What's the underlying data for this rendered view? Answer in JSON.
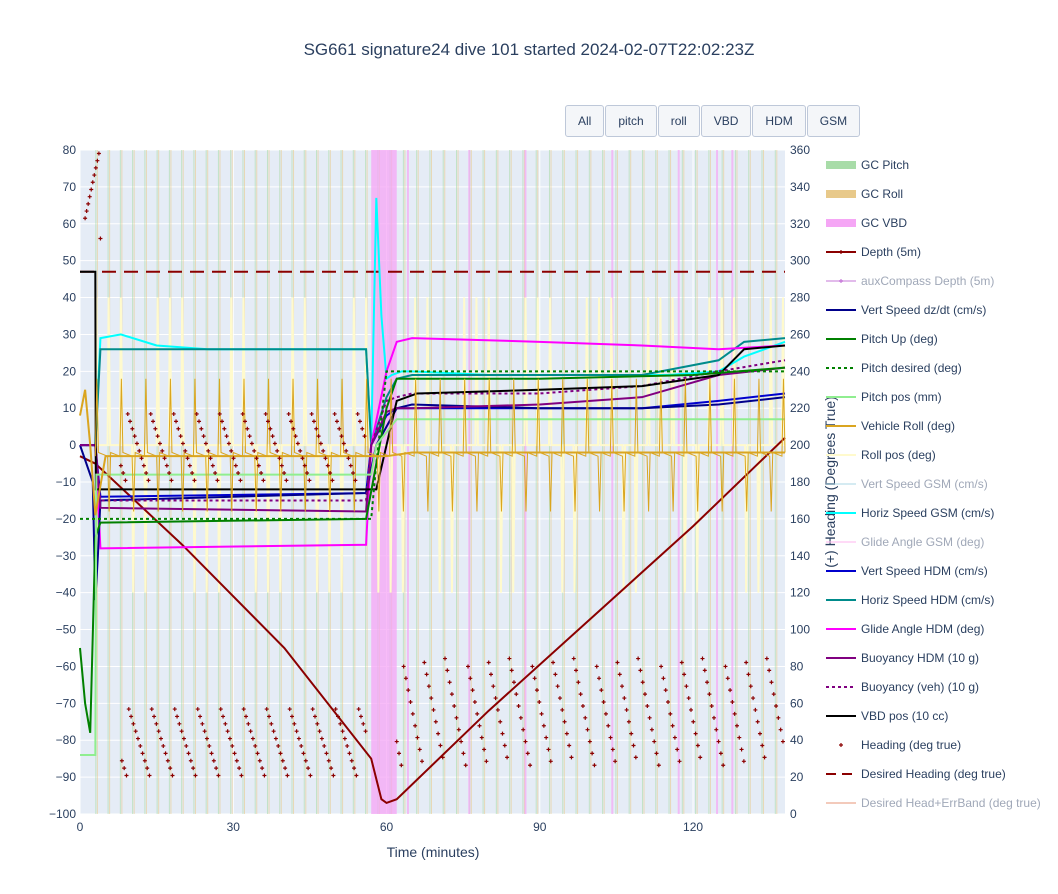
{
  "title": "SG661 signature24 dive 101 started 2024-02-07T22:02:23Z",
  "buttons": [
    "All",
    "pitch",
    "roll",
    "VBD",
    "HDM",
    "GSM"
  ],
  "chart_data": {
    "type": "line",
    "xlabel": "Time (minutes)",
    "ylabel_left": "",
    "ylabel_right": "(+) Heading (Degrees True)",
    "xlim": [
      0,
      138
    ],
    "ylim_left": [
      -100,
      80
    ],
    "ylim_right": [
      0,
      360
    ],
    "x_ticks": [
      0,
      30,
      60,
      90,
      120
    ],
    "y_ticks_left": [
      80,
      70,
      60,
      50,
      40,
      30,
      20,
      10,
      0,
      -10,
      -20,
      -30,
      -40,
      -50,
      -60,
      -70,
      -80,
      -90,
      -100
    ],
    "y_ticks_right": [
      360,
      340,
      320,
      300,
      280,
      260,
      240,
      220,
      200,
      180,
      160,
      140,
      120,
      100,
      80,
      60,
      40,
      20,
      0
    ],
    "gc_vbd_band": [
      57,
      62
    ],
    "legend": [
      {
        "name": "GC Pitch",
        "color": "#a8dca8",
        "style": "band",
        "visible": true
      },
      {
        "name": "GC Roll",
        "color": "#e8c98a",
        "style": "band",
        "visible": true
      },
      {
        "name": "GC VBD",
        "color": "#f5a6f5",
        "style": "band",
        "visible": true
      },
      {
        "name": "Depth (5m)",
        "color": "#8b0000",
        "style": "line-marker",
        "visible": true
      },
      {
        "name": "auxCompass Depth (5m)",
        "color": "#c77ad9",
        "style": "line-marker",
        "visible": false
      },
      {
        "name": "Vert Speed dz/dt (cm/s)",
        "color": "#00008b",
        "style": "line",
        "visible": true
      },
      {
        "name": "Pitch Up (deg)",
        "color": "#008000",
        "style": "line",
        "visible": true
      },
      {
        "name": "Pitch desired (deg)",
        "color": "#008000",
        "style": "dot",
        "visible": true
      },
      {
        "name": "Pitch pos (mm)",
        "color": "#90ee90",
        "style": "line",
        "visible": true
      },
      {
        "name": "Vehicle Roll (deg)",
        "color": "#daa520",
        "style": "line",
        "visible": true
      },
      {
        "name": "Roll pos (deg)",
        "color": "#fffacd",
        "style": "line",
        "visible": true
      },
      {
        "name": "Vert Speed GSM (cm/s)",
        "color": "#add8e6",
        "style": "line",
        "visible": false
      },
      {
        "name": "Horiz Speed GSM (cm/s)",
        "color": "#00ffff",
        "style": "line",
        "visible": true
      },
      {
        "name": "Glide Angle GSM (deg)",
        "color": "#ffb6f0",
        "style": "line",
        "visible": false
      },
      {
        "name": "Vert Speed HDM (cm/s)",
        "color": "#0000cd",
        "style": "line",
        "visible": true
      },
      {
        "name": "Horiz Speed HDM (cm/s)",
        "color": "#008b8b",
        "style": "line",
        "visible": true
      },
      {
        "name": "Glide Angle HDM (deg)",
        "color": "#ff00ff",
        "style": "line",
        "visible": true
      },
      {
        "name": "Buoyancy HDM (10 g)",
        "color": "#800080",
        "style": "line",
        "visible": true
      },
      {
        "name": "Buoyancy (veh) (10 g)",
        "color": "#800080",
        "style": "dot",
        "visible": true
      },
      {
        "name": "VBD pos (10 cc)",
        "color": "#000000",
        "style": "line",
        "visible": true
      },
      {
        "name": "Heading (deg true)",
        "color": "#8b0000",
        "style": "marker",
        "visible": true
      },
      {
        "name": "Desired Heading (deg true)",
        "color": "#8b0000",
        "style": "dash",
        "visible": true
      },
      {
        "name": "Desired Head+ErrBand (deg true)",
        "color": "#e9967a",
        "style": "line",
        "visible": false
      }
    ],
    "series": [
      {
        "name": "Depth (5m)",
        "axis": "left",
        "x": [
          0,
          3,
          20,
          40,
          57,
          59,
          60,
          62,
          80,
          100,
          120,
          138
        ],
        "y": [
          -3,
          -5,
          -27,
          -55,
          -85,
          -96,
          -97,
          -96,
          -72,
          -47,
          -22,
          2
        ]
      },
      {
        "name": "Desired Heading (deg true)",
        "axis": "right",
        "x": [
          0,
          138
        ],
        "y": [
          294,
          294
        ]
      },
      {
        "name": "Horiz Speed GSM (cm/s)",
        "axis": "left",
        "x": [
          0,
          3,
          4,
          8,
          15,
          25,
          35,
          45,
          56,
          57,
          58,
          59,
          60,
          61,
          63,
          65,
          80,
          100,
          115,
          125,
          130,
          138
        ],
        "y": [
          0,
          0,
          29,
          30,
          27,
          26,
          26,
          26,
          26,
          0,
          67,
          35,
          18,
          19,
          20,
          20,
          19,
          19,
          19,
          20,
          24,
          28
        ]
      },
      {
        "name": "Horiz Speed HDM (cm/s)",
        "axis": "left",
        "x": [
          0,
          3,
          4,
          56,
          57,
          60,
          62,
          65,
          90,
          110,
          125,
          130,
          138
        ],
        "y": [
          0,
          0,
          26,
          26,
          0,
          13,
          18,
          19,
          19,
          19,
          23,
          28,
          29
        ]
      },
      {
        "name": "Glide Angle HDM (deg)",
        "axis": "left",
        "x": [
          0,
          3,
          4,
          56,
          57,
          60,
          62,
          65,
          90,
          110,
          125,
          138
        ],
        "y": [
          0,
          0,
          -28,
          -27,
          0,
          20,
          28,
          29,
          28,
          27,
          26,
          27
        ]
      },
      {
        "name": "Vert Speed HDM (cm/s)",
        "axis": "left",
        "x": [
          0,
          3,
          4,
          56,
          57,
          60,
          62,
          65,
          90,
          110,
          125,
          138
        ],
        "y": [
          0,
          0,
          -14,
          -13,
          0,
          8,
          10,
          10,
          10,
          10,
          12,
          14
        ]
      },
      {
        "name": "Vert Speed dz/dt (cm/s)",
        "axis": "left",
        "x": [
          0,
          2.5,
          3,
          3.5,
          4,
          56,
          58,
          60,
          62,
          65,
          90,
          110,
          125,
          138
        ],
        "y": [
          0,
          -10,
          -42,
          -30,
          -15,
          -13,
          0,
          5,
          10,
          11,
          10,
          10,
          11,
          13
        ]
      },
      {
        "name": "Buoyancy HDM (10 g)",
        "axis": "left",
        "x": [
          0,
          3,
          4,
          56,
          57,
          60,
          62,
          65,
          90,
          110,
          125,
          138
        ],
        "y": [
          0,
          0,
          -17,
          -18,
          0,
          9,
          10,
          10,
          11,
          13,
          19,
          21
        ]
      },
      {
        "name": "Buoyancy (veh) (10 g)",
        "axis": "left",
        "x": [
          0,
          3,
          4,
          56,
          57,
          60,
          62,
          65,
          90,
          110,
          125,
          138
        ],
        "y": [
          0,
          0,
          -15,
          -15,
          0,
          12,
          13,
          14,
          14,
          16,
          20,
          23
        ]
      },
      {
        "name": "VBD pos (10 cc)",
        "axis": "left",
        "x": [
          0,
          3,
          3.1,
          56,
          58,
          62,
          66,
          90,
          110,
          125,
          130,
          138
        ],
        "y": [
          47,
          47,
          -12,
          -12,
          -12,
          12,
          14,
          15,
          16,
          19,
          26,
          27
        ]
      },
      {
        "name": "Pitch Up (deg)",
        "axis": "left",
        "x": [
          0,
          1,
          2,
          3,
          4,
          56,
          58,
          60,
          62,
          90,
          120,
          138
        ],
        "y": [
          -55,
          -70,
          -78,
          -25,
          -21,
          -20,
          -5,
          10,
          18,
          18,
          19,
          21
        ]
      },
      {
        "name": "Pitch desired (deg)",
        "axis": "left",
        "x": [
          0,
          3,
          57,
          58,
          60,
          138
        ],
        "y": [
          -20,
          -20,
          -20,
          -5,
          20,
          20
        ]
      },
      {
        "name": "Pitch pos (mm)",
        "axis": "left",
        "x": [
          0,
          3,
          3.2,
          57,
          58,
          62,
          138
        ],
        "y": [
          -84,
          -84,
          -8,
          -8,
          0,
          7,
          7
        ]
      },
      {
        "name": "Vehicle Roll (deg)",
        "axis": "left",
        "x": [
          0,
          1,
          2,
          3,
          5,
          56,
          60,
          65,
          138
        ],
        "y": [
          8,
          15,
          0,
          -19,
          -3,
          -3,
          -3,
          -2,
          -2
        ]
      }
    ]
  }
}
